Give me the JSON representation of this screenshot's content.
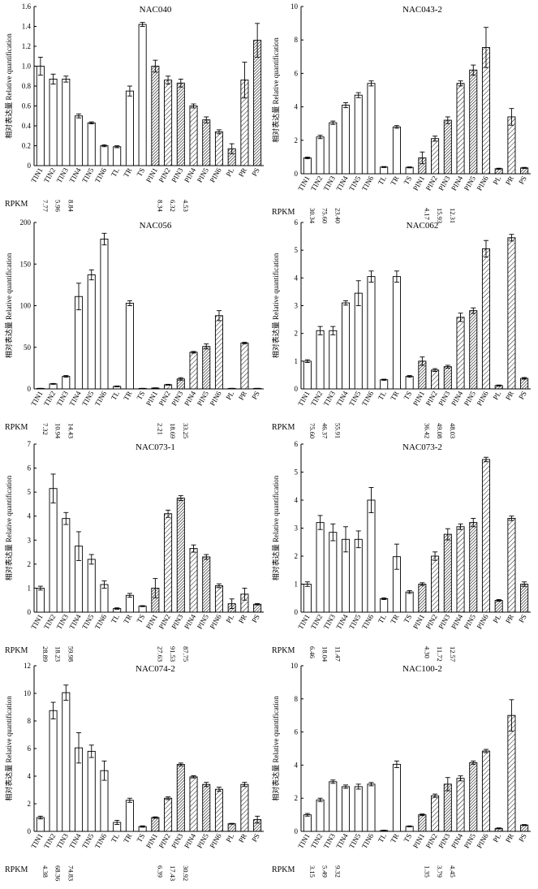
{
  "common": {
    "categories": [
      "TIN1",
      "TIN2",
      "TIN3",
      "TIN4",
      "TIN5",
      "TIN6",
      "TL",
      "TR",
      "TS",
      "PIN1",
      "PIN2",
      "PIN3",
      "PIN4",
      "PIN5",
      "PIN6",
      "PL",
      "PR",
      "PS"
    ],
    "ylabel": "相对表达量 Relative quantification",
    "rpkm_label": "RPKM"
  },
  "colors": {
    "bar_fill": "#ffffff",
    "bar_stroke": "#000000",
    "hatch": "#000000"
  },
  "chart_data": [
    {
      "type": "bar",
      "title": "NAC040",
      "ylim": [
        0,
        1.6
      ],
      "yticks": [
        "0",
        "0.2",
        "0.4",
        "0.6",
        "0.8",
        "1.0",
        "1.2",
        "1.4",
        "1.6"
      ],
      "values": [
        1.0,
        0.87,
        0.87,
        0.5,
        0.43,
        0.2,
        0.19,
        0.75,
        1.42,
        1.0,
        0.86,
        0.83,
        0.6,
        0.46,
        0.34,
        0.17,
        0.86,
        1.26
      ],
      "errors": [
        0.09,
        0.05,
        0.03,
        0.02,
        0.01,
        0.01,
        0.01,
        0.05,
        0.02,
        0.06,
        0.04,
        0.04,
        0.02,
        0.03,
        0.02,
        0.05,
        0.18,
        0.17
      ],
      "rpkm": [
        "7.77",
        "5.96",
        "8.84",
        "",
        "",
        "",
        "",
        "",
        "",
        "8.34",
        "6.32",
        "4.53",
        "",
        "",
        "",
        "",
        "",
        ""
      ]
    },
    {
      "type": "bar",
      "title": "NAC043-2",
      "ylim": [
        0,
        10
      ],
      "yticks": [
        "0",
        "2",
        "4",
        "6",
        "8",
        "10"
      ],
      "values": [
        0.95,
        2.2,
        3.05,
        4.1,
        4.7,
        5.4,
        0.4,
        2.8,
        0.38,
        0.95,
        2.1,
        3.2,
        5.4,
        6.2,
        7.55,
        0.3,
        3.4,
        0.35
      ],
      "errors": [
        0.05,
        0.1,
        0.1,
        0.15,
        0.15,
        0.15,
        0.03,
        0.08,
        0.03,
        0.35,
        0.15,
        0.2,
        0.15,
        0.3,
        1.2,
        0.03,
        0.5,
        0.03
      ],
      "rpkm": [
        "30.34",
        "75.60",
        "23.40",
        "",
        "",
        "",
        "",
        "",
        "",
        "4.17",
        "15.93",
        "12.31",
        "",
        "",
        "",
        "",
        "",
        ""
      ]
    },
    {
      "type": "bar",
      "title": "NAC056",
      "ylim": [
        0,
        200
      ],
      "yticks": [
        "0",
        "50",
        "100",
        "150",
        "200"
      ],
      "values": [
        0.5,
        6,
        15,
        111,
        137,
        180,
        3,
        103,
        0.5,
        1,
        5,
        12,
        44,
        51,
        88,
        0.5,
        55,
        0.5
      ],
      "errors": [
        0.2,
        0.5,
        1,
        16,
        6,
        7,
        0.5,
        3,
        0.2,
        0.3,
        0.5,
        1.5,
        1,
        3,
        6,
        0.2,
        1,
        0.2
      ],
      "rpkm": [
        "7.32",
        "10.94",
        "14.43",
        "",
        "",
        "",
        "",
        "",
        "",
        "2.21",
        "18.69",
        "33.25",
        "",
        "",
        "",
        "",
        "",
        ""
      ]
    },
    {
      "type": "bar",
      "title": "NAC062",
      "ylim": [
        0,
        6
      ],
      "yticks": [
        "0",
        "1",
        "2",
        "3",
        "4",
        "5",
        "6"
      ],
      "values": [
        1.0,
        2.1,
        2.1,
        3.1,
        3.45,
        4.05,
        0.33,
        4.05,
        0.45,
        1.0,
        0.68,
        0.8,
        2.58,
        2.82,
        5.05,
        0.12,
        5.45,
        0.38
      ],
      "errors": [
        0.05,
        0.15,
        0.15,
        0.08,
        0.45,
        0.2,
        0.02,
        0.2,
        0.03,
        0.15,
        0.05,
        0.05,
        0.15,
        0.1,
        0.3,
        0.02,
        0.12,
        0.03
      ],
      "rpkm": [
        "75.60",
        "46.37",
        "55.91",
        "",
        "",
        "",
        "",
        "",
        "",
        "36.42",
        "49.08",
        "48.03",
        "",
        "",
        "",
        "",
        "",
        ""
      ]
    },
    {
      "type": "bar",
      "title": "NAC073-1",
      "ylim": [
        0,
        7
      ],
      "yticks": [
        "0",
        "1",
        "2",
        "3",
        "4",
        "5",
        "6",
        "7"
      ],
      "values": [
        1.0,
        5.15,
        3.9,
        2.75,
        2.2,
        1.15,
        0.15,
        0.7,
        0.25,
        1.0,
        4.1,
        4.75,
        2.65,
        2.3,
        1.1,
        0.35,
        0.75,
        0.33
      ],
      "errors": [
        0.08,
        0.6,
        0.25,
        0.6,
        0.2,
        0.15,
        0.03,
        0.08,
        0.02,
        0.4,
        0.15,
        0.1,
        0.15,
        0.1,
        0.08,
        0.2,
        0.25,
        0.03
      ],
      "rpkm": [
        "28.89",
        "18.23",
        "59.98",
        "",
        "",
        "",
        "",
        "",
        "",
        "27.63",
        "91.53",
        "87.75",
        "",
        "",
        "",
        "",
        "",
        ""
      ]
    },
    {
      "type": "bar",
      "title": "NAC073-2",
      "ylim": [
        0,
        6
      ],
      "yticks": [
        "0",
        "1",
        "2",
        "3",
        "4",
        "5",
        "6"
      ],
      "values": [
        1.0,
        3.2,
        2.85,
        2.6,
        2.6,
        4.0,
        0.48,
        1.98,
        0.72,
        1.0,
        2.0,
        2.78,
        3.05,
        3.2,
        5.45,
        0.42,
        3.35,
        1.0
      ],
      "errors": [
        0.08,
        0.25,
        0.3,
        0.45,
        0.3,
        0.45,
        0.03,
        0.45,
        0.05,
        0.05,
        0.15,
        0.2,
        0.1,
        0.15,
        0.08,
        0.03,
        0.08,
        0.08
      ],
      "rpkm": [
        "6.46",
        "18.04",
        "11.47",
        "",
        "",
        "",
        "",
        "",
        "",
        "4.30",
        "11.72",
        "12.57",
        "",
        "",
        "",
        "",
        "",
        ""
      ]
    },
    {
      "type": "bar",
      "title": "NAC074-2",
      "ylim": [
        0,
        12
      ],
      "yticks": [
        "0",
        "2",
        "4",
        "6",
        "8",
        "10",
        "12"
      ],
      "values": [
        1.0,
        8.75,
        10.05,
        6.05,
        5.8,
        4.4,
        0.65,
        2.25,
        0.35,
        1.0,
        2.4,
        4.85,
        3.95,
        3.4,
        3.05,
        0.55,
        3.4,
        0.85
      ],
      "errors": [
        0.1,
        0.6,
        0.55,
        1.1,
        0.45,
        0.7,
        0.15,
        0.15,
        0.05,
        0.05,
        0.1,
        0.1,
        0.08,
        0.15,
        0.15,
        0.03,
        0.15,
        0.25
      ],
      "rpkm": [
        "4.38",
        "68.36",
        "74.83",
        "",
        "",
        "",
        "",
        "",
        "",
        "6.39",
        "17.43",
        "30.92",
        "",
        "",
        "",
        "",
        "",
        ""
      ]
    },
    {
      "type": "bar",
      "title": "NAC100-2",
      "ylim": [
        0,
        10
      ],
      "yticks": [
        "0",
        "2",
        "4",
        "6",
        "8",
        "10"
      ],
      "values": [
        1.0,
        1.9,
        3.0,
        2.7,
        2.7,
        2.85,
        0.05,
        4.05,
        0.3,
        1.0,
        2.15,
        2.85,
        3.2,
        4.15,
        4.85,
        0.18,
        7.0,
        0.38
      ],
      "errors": [
        0.08,
        0.1,
        0.1,
        0.1,
        0.15,
        0.1,
        0.02,
        0.2,
        0.03,
        0.05,
        0.1,
        0.4,
        0.15,
        0.1,
        0.1,
        0.03,
        0.95,
        0.03
      ],
      "rpkm": [
        "3.15",
        "5.49",
        "9.32",
        "",
        "",
        "",
        "",
        "",
        "",
        "1.35",
        "3.79",
        "4.45",
        "",
        "",
        "",
        "",
        "",
        ""
      ]
    }
  ]
}
